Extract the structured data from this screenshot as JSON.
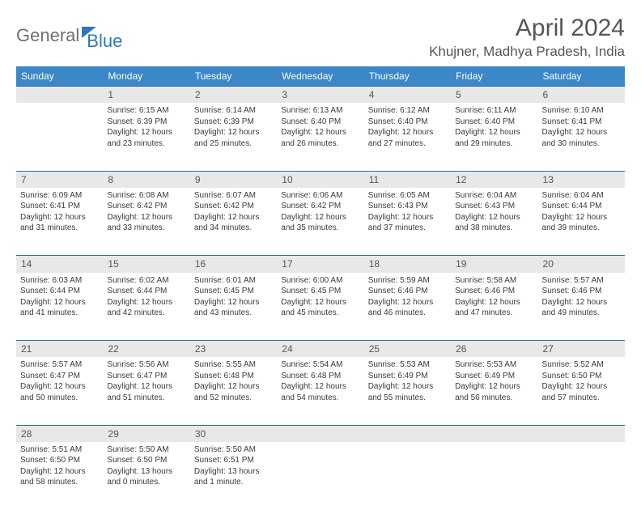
{
  "logo": {
    "word1": "General",
    "word2": "Blue"
  },
  "header": {
    "title": "April 2024",
    "location": "Khujner, Madhya Pradesh, India"
  },
  "colors": {
    "header_bg": "#3b87c8",
    "header_text": "#ffffff",
    "daynum_bg": "#e8e8e8",
    "row_border": "#2f6da3",
    "text": "#3a3a3a",
    "title_text": "#555555"
  },
  "typography": {
    "title_fontsize": 30,
    "location_fontsize": 17,
    "weekday_fontsize": 12,
    "daynum_fontsize": 12,
    "cell_fontsize": 10
  },
  "weekdays": [
    "Sunday",
    "Monday",
    "Tuesday",
    "Wednesday",
    "Thursday",
    "Friday",
    "Saturday"
  ],
  "weeks": [
    [
      null,
      {
        "n": "1",
        "sr": "Sunrise: 6:15 AM",
        "ss": "Sunset: 6:39 PM",
        "dl": "Daylight: 12 hours and 23 minutes."
      },
      {
        "n": "2",
        "sr": "Sunrise: 6:14 AM",
        "ss": "Sunset: 6:39 PM",
        "dl": "Daylight: 12 hours and 25 minutes."
      },
      {
        "n": "3",
        "sr": "Sunrise: 6:13 AM",
        "ss": "Sunset: 6:40 PM",
        "dl": "Daylight: 12 hours and 26 minutes."
      },
      {
        "n": "4",
        "sr": "Sunrise: 6:12 AM",
        "ss": "Sunset: 6:40 PM",
        "dl": "Daylight: 12 hours and 27 minutes."
      },
      {
        "n": "5",
        "sr": "Sunrise: 6:11 AM",
        "ss": "Sunset: 6:40 PM",
        "dl": "Daylight: 12 hours and 29 minutes."
      },
      {
        "n": "6",
        "sr": "Sunrise: 6:10 AM",
        "ss": "Sunset: 6:41 PM",
        "dl": "Daylight: 12 hours and 30 minutes."
      }
    ],
    [
      {
        "n": "7",
        "sr": "Sunrise: 6:09 AM",
        "ss": "Sunset: 6:41 PM",
        "dl": "Daylight: 12 hours and 31 minutes."
      },
      {
        "n": "8",
        "sr": "Sunrise: 6:08 AM",
        "ss": "Sunset: 6:42 PM",
        "dl": "Daylight: 12 hours and 33 minutes."
      },
      {
        "n": "9",
        "sr": "Sunrise: 6:07 AM",
        "ss": "Sunset: 6:42 PM",
        "dl": "Daylight: 12 hours and 34 minutes."
      },
      {
        "n": "10",
        "sr": "Sunrise: 6:06 AM",
        "ss": "Sunset: 6:42 PM",
        "dl": "Daylight: 12 hours and 35 minutes."
      },
      {
        "n": "11",
        "sr": "Sunrise: 6:05 AM",
        "ss": "Sunset: 6:43 PM",
        "dl": "Daylight: 12 hours and 37 minutes."
      },
      {
        "n": "12",
        "sr": "Sunrise: 6:04 AM",
        "ss": "Sunset: 6:43 PM",
        "dl": "Daylight: 12 hours and 38 minutes."
      },
      {
        "n": "13",
        "sr": "Sunrise: 6:04 AM",
        "ss": "Sunset: 6:44 PM",
        "dl": "Daylight: 12 hours and 39 minutes."
      }
    ],
    [
      {
        "n": "14",
        "sr": "Sunrise: 6:03 AM",
        "ss": "Sunset: 6:44 PM",
        "dl": "Daylight: 12 hours and 41 minutes."
      },
      {
        "n": "15",
        "sr": "Sunrise: 6:02 AM",
        "ss": "Sunset: 6:44 PM",
        "dl": "Daylight: 12 hours and 42 minutes."
      },
      {
        "n": "16",
        "sr": "Sunrise: 6:01 AM",
        "ss": "Sunset: 6:45 PM",
        "dl": "Daylight: 12 hours and 43 minutes."
      },
      {
        "n": "17",
        "sr": "Sunrise: 6:00 AM",
        "ss": "Sunset: 6:45 PM",
        "dl": "Daylight: 12 hours and 45 minutes."
      },
      {
        "n": "18",
        "sr": "Sunrise: 5:59 AM",
        "ss": "Sunset: 6:46 PM",
        "dl": "Daylight: 12 hours and 46 minutes."
      },
      {
        "n": "19",
        "sr": "Sunrise: 5:58 AM",
        "ss": "Sunset: 6:46 PM",
        "dl": "Daylight: 12 hours and 47 minutes."
      },
      {
        "n": "20",
        "sr": "Sunrise: 5:57 AM",
        "ss": "Sunset: 6:46 PM",
        "dl": "Daylight: 12 hours and 49 minutes."
      }
    ],
    [
      {
        "n": "21",
        "sr": "Sunrise: 5:57 AM",
        "ss": "Sunset: 6:47 PM",
        "dl": "Daylight: 12 hours and 50 minutes."
      },
      {
        "n": "22",
        "sr": "Sunrise: 5:56 AM",
        "ss": "Sunset: 6:47 PM",
        "dl": "Daylight: 12 hours and 51 minutes."
      },
      {
        "n": "23",
        "sr": "Sunrise: 5:55 AM",
        "ss": "Sunset: 6:48 PM",
        "dl": "Daylight: 12 hours and 52 minutes."
      },
      {
        "n": "24",
        "sr": "Sunrise: 5:54 AM",
        "ss": "Sunset: 6:48 PM",
        "dl": "Daylight: 12 hours and 54 minutes."
      },
      {
        "n": "25",
        "sr": "Sunrise: 5:53 AM",
        "ss": "Sunset: 6:49 PM",
        "dl": "Daylight: 12 hours and 55 minutes."
      },
      {
        "n": "26",
        "sr": "Sunrise: 5:53 AM",
        "ss": "Sunset: 6:49 PM",
        "dl": "Daylight: 12 hours and 56 minutes."
      },
      {
        "n": "27",
        "sr": "Sunrise: 5:52 AM",
        "ss": "Sunset: 6:50 PM",
        "dl": "Daylight: 12 hours and 57 minutes."
      }
    ],
    [
      {
        "n": "28",
        "sr": "Sunrise: 5:51 AM",
        "ss": "Sunset: 6:50 PM",
        "dl": "Daylight: 12 hours and 58 minutes."
      },
      {
        "n": "29",
        "sr": "Sunrise: 5:50 AM",
        "ss": "Sunset: 6:50 PM",
        "dl": "Daylight: 13 hours and 0 minutes."
      },
      {
        "n": "30",
        "sr": "Sunrise: 5:50 AM",
        "ss": "Sunset: 6:51 PM",
        "dl": "Daylight: 13 hours and 1 minute."
      },
      null,
      null,
      null,
      null
    ]
  ]
}
